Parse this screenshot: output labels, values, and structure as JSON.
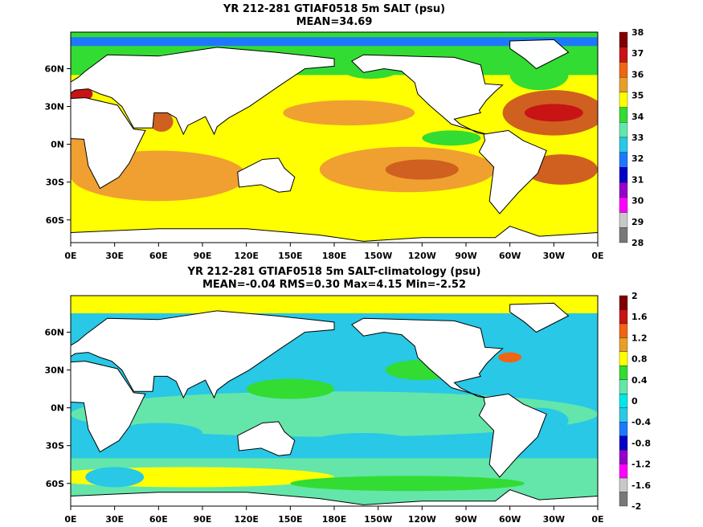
{
  "panels": [
    {
      "title": "YR 212-281 GTIAF0518 5m SALT (psu)",
      "subtitle": "MEAN=34.69",
      "field": "salt",
      "colorbar": {
        "levels": [
          "38",
          "37",
          "36",
          "35",
          "34",
          "33",
          "32",
          "31",
          "30",
          "29",
          "28"
        ],
        "colors": [
          "#800000",
          "#c81414",
          "#f06414",
          "#e6a028",
          "#ffff00",
          "#32dc32",
          "#64e6aa",
          "#28c8e6",
          "#1e78ff",
          "#0000c8",
          "#9600c8",
          "#ff00ff",
          "#c8c8c8",
          "#787878"
        ]
      },
      "map_colors": {
        "low": "#32dc32",
        "mid": "#ffff00",
        "warm": "#f0a030",
        "high": "#d06020",
        "peak": "#c81414",
        "land": "#ffffff"
      }
    },
    {
      "title": "YR 212-281 GTIAF0518 5m SALT-climatology (psu)",
      "subtitle": "MEAN=-0.04   RMS=0.30   Max=4.15   Min=-2.52",
      "field": "anomaly",
      "colorbar": {
        "levels": [
          "2",
          "1.6",
          "1.2",
          "0.8",
          "0.4",
          "0",
          "-0.4",
          "-0.8",
          "-1.2",
          "-1.6",
          "-2"
        ],
        "colors": [
          "#800000",
          "#c81414",
          "#f06414",
          "#e6a028",
          "#ffff00",
          "#32dc32",
          "#64e6aa",
          "#00e6e6",
          "#28c8e6",
          "#1e78ff",
          "#0000c8",
          "#9600c8",
          "#ff00ff",
          "#c8c8c8",
          "#787878"
        ]
      },
      "map_colors": {
        "low": "#28c8e6",
        "mid": "#64e6aa",
        "warm": "#32dc32",
        "high": "#ffff00",
        "peak": "#f06414",
        "land": "#ffffff"
      }
    }
  ],
  "axes": {
    "x_ticks": [
      "0E",
      "30E",
      "60E",
      "90E",
      "120E",
      "150E",
      "180E",
      "150W",
      "120W",
      "90W",
      "60W",
      "30W",
      "0E"
    ],
    "y_ticks": [
      "60N",
      "30N",
      "0N",
      "30S",
      "60S"
    ],
    "y_values": [
      60,
      30,
      0,
      -30,
      -60
    ],
    "lat_range": [
      -78,
      89
    ]
  }
}
